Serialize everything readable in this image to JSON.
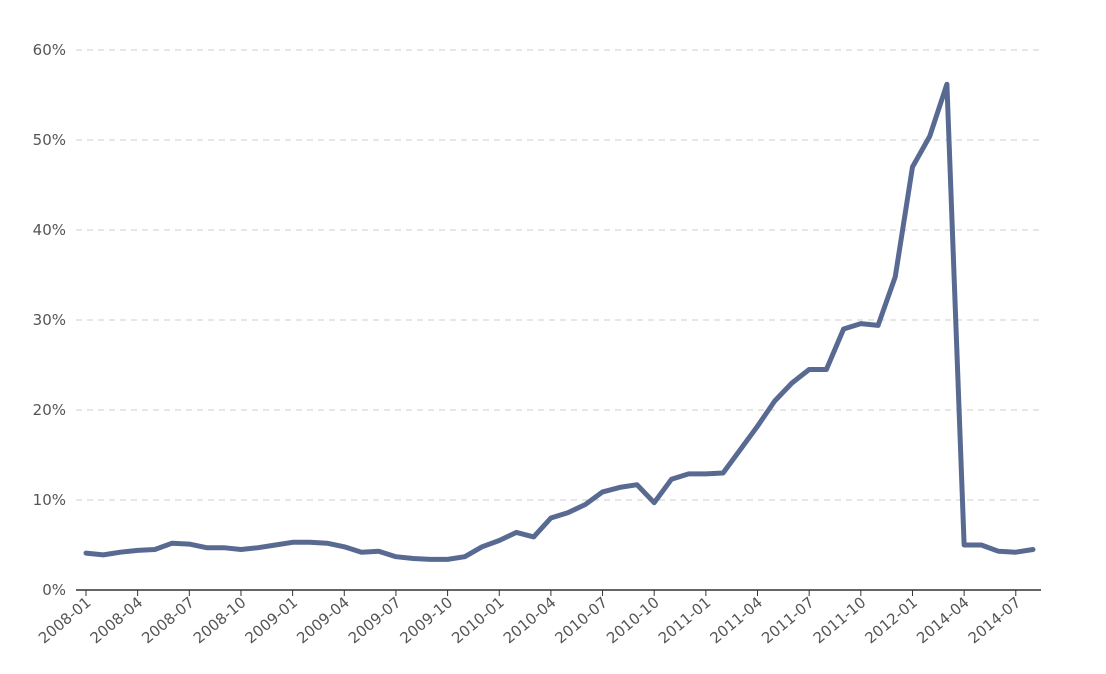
{
  "colors": {
    "series": "#596a92",
    "grid": "#cccccc",
    "axis": "#333333",
    "text": "#555555"
  },
  "chart_data": {
    "type": "line",
    "title": "",
    "xlabel": "",
    "ylabel": "",
    "ylim": [
      0,
      60
    ],
    "yticks": [
      0,
      10,
      20,
      30,
      40,
      50,
      60
    ],
    "ytick_labels": [
      "0%",
      "10%",
      "20%",
      "30%",
      "40%",
      "50%",
      "60%"
    ],
    "grid": "horizontal dashed",
    "legend": "none",
    "x": [
      "2008-01",
      "2008-02",
      "2008-03",
      "2008-04",
      "2008-05",
      "2008-06",
      "2008-07",
      "2008-08",
      "2008-09",
      "2008-10",
      "2008-11",
      "2008-12",
      "2009-01",
      "2009-02",
      "2009-03",
      "2009-04",
      "2009-05",
      "2009-06",
      "2009-07",
      "2009-08",
      "2009-09",
      "2009-10",
      "2009-11",
      "2009-12",
      "2010-01",
      "2010-02",
      "2010-03",
      "2010-04",
      "2010-05",
      "2010-06",
      "2010-07",
      "2010-08",
      "2010-09",
      "2010-10",
      "2010-11",
      "2010-12",
      "2011-01",
      "2011-02",
      "2011-03",
      "2011-04",
      "2011-05",
      "2011-06",
      "2011-07",
      "2011-08",
      "2011-09",
      "2011-10",
      "2011-11",
      "2011-12",
      "2012-01",
      "2012-02",
      "2012-03",
      "2014-04",
      "2014-05",
      "2014-06",
      "2014-07",
      "2014-08"
    ],
    "xtick_labels": [
      "2008-01",
      "2008-04",
      "2008-07",
      "2008-10",
      "2009-01",
      "2009-04",
      "2009-07",
      "2009-10",
      "2010-01",
      "2010-04",
      "2010-07",
      "2010-10",
      "2011-01",
      "2011-04",
      "2011-07",
      "2011-10",
      "2012-01",
      "2014-04",
      "2014-07"
    ],
    "series": [
      {
        "values": [
          4.1,
          3.9,
          4.2,
          4.4,
          4.5,
          5.2,
          5.1,
          4.7,
          4.7,
          4.5,
          4.7,
          5.0,
          5.3,
          5.3,
          5.2,
          4.8,
          4.2,
          4.3,
          3.7,
          3.5,
          3.4,
          3.4,
          3.7,
          4.8,
          5.5,
          6.4,
          5.9,
          8.0,
          8.6,
          9.5,
          10.9,
          11.4,
          11.7,
          9.7,
          12.3,
          12.9,
          12.9,
          13.0,
          15.6,
          18.2,
          21.0,
          23.0,
          24.5,
          24.5,
          29.0,
          29.6,
          29.4,
          34.8,
          47.0,
          50.4,
          56.2,
          5.0,
          5.0,
          4.3,
          4.2,
          4.5
        ]
      }
    ]
  }
}
